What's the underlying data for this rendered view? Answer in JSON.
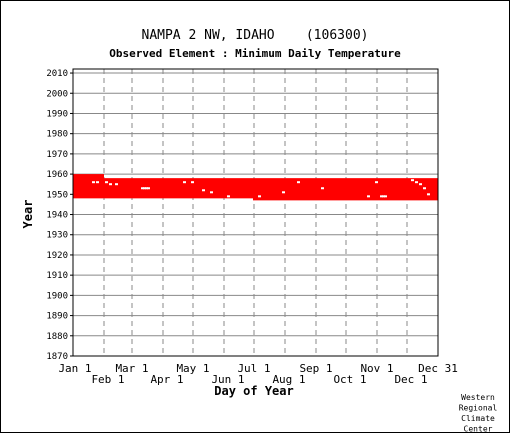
{
  "chart_data": {
    "type": "scatter",
    "title": "NAMPA 2 NW, IDAHO    (106300)",
    "subtitle": "Observed Element : Minimum Daily Temperature",
    "xlabel": "Day of Year",
    "ylabel": "Year",
    "xlim": [
      1,
      366
    ],
    "ylim": [
      1870,
      2012
    ],
    "y_ticks": [
      1870,
      1880,
      1890,
      1900,
      1910,
      1920,
      1930,
      1940,
      1950,
      1960,
      1970,
      1980,
      1990,
      2000,
      2010
    ],
    "x_ticks_top_row": [
      {
        "day": 1,
        "label": "Jan 1"
      },
      {
        "day": 60,
        "label": "Mar 1"
      },
      {
        "day": 121,
        "label": "May 1"
      },
      {
        "day": 182,
        "label": "Jul 1"
      },
      {
        "day": 244,
        "label": "Sep 1"
      },
      {
        "day": 305,
        "label": "Nov 1"
      },
      {
        "day": 366,
        "label": "Dec 31"
      }
    ],
    "x_ticks_bottom_row": [
      {
        "day": 32,
        "label": "Feb 1"
      },
      {
        "day": 91,
        "label": "Apr 1"
      },
      {
        "day": 152,
        "label": "Jun 1"
      },
      {
        "day": 213,
        "label": "Aug 1"
      },
      {
        "day": 274,
        "label": "Oct 1"
      },
      {
        "day": 335,
        "label": "Dec 1"
      }
    ],
    "grid": true,
    "series": [
      {
        "color": "#ff0000",
        "observed_periods": [
          {
            "day_start": 1,
            "day_end": 32,
            "year_start": 1948,
            "year_end": 1960
          },
          {
            "day_start": 32,
            "day_end": 181,
            "year_start": 1948,
            "year_end": 1958
          },
          {
            "day_start": 181,
            "day_end": 366,
            "year_start": 1947,
            "year_end": 1958
          }
        ],
        "missing_points": [
          {
            "day": 21,
            "year": 1956
          },
          {
            "day": 25,
            "year": 1956
          },
          {
            "day": 34,
            "year": 1956
          },
          {
            "day": 38,
            "year": 1955
          },
          {
            "day": 44,
            "year": 1955
          },
          {
            "day": 70,
            "year": 1953
          },
          {
            "day": 72,
            "year": 1953
          },
          {
            "day": 74,
            "year": 1953
          },
          {
            "day": 76,
            "year": 1953
          },
          {
            "day": 112,
            "year": 1956
          },
          {
            "day": 120,
            "year": 1956
          },
          {
            "day": 131,
            "year": 1952
          },
          {
            "day": 139,
            "year": 1951
          },
          {
            "day": 156,
            "year": 1949
          },
          {
            "day": 187,
            "year": 1949
          },
          {
            "day": 211,
            "year": 1951
          },
          {
            "day": 226,
            "year": 1956
          },
          {
            "day": 250,
            "year": 1953
          },
          {
            "day": 296,
            "year": 1949
          },
          {
            "day": 304,
            "year": 1956
          },
          {
            "day": 309,
            "year": 1949
          },
          {
            "day": 311,
            "year": 1949
          },
          {
            "day": 313,
            "year": 1949
          },
          {
            "day": 340,
            "year": 1957
          },
          {
            "day": 344,
            "year": 1956
          },
          {
            "day": 348,
            "year": 1955
          },
          {
            "day": 352,
            "year": 1953
          },
          {
            "day": 356,
            "year": 1950
          }
        ]
      }
    ]
  },
  "credit": [
    "Western",
    "Regional",
    "Climate",
    "Center"
  ]
}
